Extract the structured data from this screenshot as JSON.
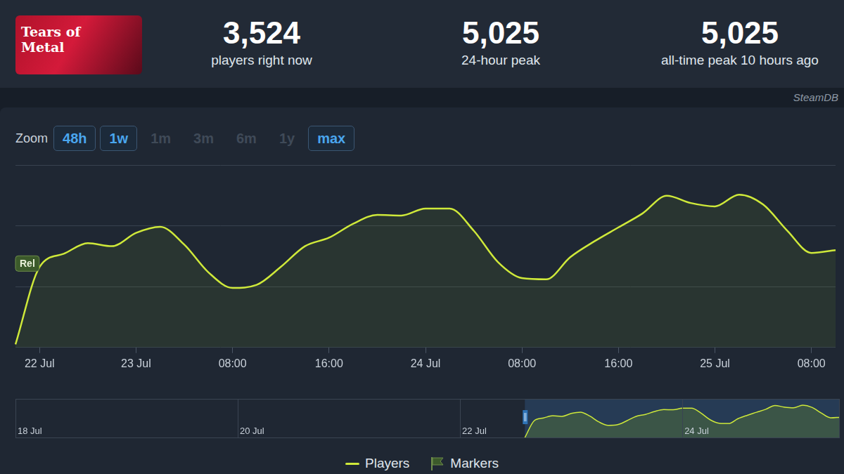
{
  "header": {
    "logo_text": "Tears of Metal",
    "stats": [
      {
        "value": "3,524",
        "label": "players right now"
      },
      {
        "value": "5,025",
        "label": "24-hour peak"
      },
      {
        "value": "5,025",
        "label": "all-time peak 10 hours ago"
      }
    ],
    "source": "SteamDB"
  },
  "zoom": {
    "label": "Zoom",
    "buttons": [
      {
        "text": "48h",
        "active": true
      },
      {
        "text": "1w",
        "active": true
      },
      {
        "text": "1m",
        "active": false
      },
      {
        "text": "3m",
        "active": false
      },
      {
        "text": "6m",
        "active": false
      },
      {
        "text": "1y",
        "active": false
      },
      {
        "text": "max",
        "active": true
      }
    ]
  },
  "chart_data": {
    "type": "line",
    "categories": [
      null,
      "22 Jul",
      null,
      null,
      null,
      "23 Jul",
      null,
      null,
      null,
      "08:00",
      null,
      null,
      null,
      "16:00",
      null,
      null,
      null,
      "24 Jul",
      null,
      null,
      null,
      "08:00",
      null,
      null,
      null,
      "16:00",
      null,
      null,
      null,
      "25 Jul",
      null,
      null,
      null,
      "08:00",
      null
    ],
    "series": [
      {
        "name": "Players",
        "color": "#cfe93a",
        "values": [
          100,
          2650,
          3080,
          3430,
          3330,
          3770,
          3970,
          3380,
          2470,
          1960,
          2060,
          2650,
          3330,
          3610,
          4070,
          4360,
          4340,
          4570,
          4570,
          3840,
          2810,
          2280,
          2240,
          2970,
          3490,
          3950,
          4410,
          4990,
          4750,
          4640,
          5025,
          4700,
          3840,
          3110,
          3200
        ]
      }
    ],
    "ylim": [
      0,
      6000
    ],
    "yticks": [
      0,
      2000,
      4000,
      6000
    ],
    "grid": true,
    "tick_labels": "x",
    "legend": "bottom",
    "annotations": [
      "Rel"
    ]
  },
  "marker_legend": "Markers",
  "navigator": {
    "categories": [
      "18 Jul",
      null,
      null,
      null,
      null,
      null,
      null,
      null,
      null,
      null,
      null,
      null,
      null,
      null,
      null,
      null,
      null,
      null,
      null,
      null,
      null,
      null,
      null,
      null,
      "20 Jul",
      null,
      null,
      null,
      null,
      null,
      null,
      null,
      null,
      null,
      null,
      null,
      null,
      null,
      null,
      null,
      null,
      null,
      null,
      null,
      null,
      null,
      null,
      null,
      "22 Jul",
      null,
      null,
      null,
      null,
      null,
      null,
      null,
      null,
      null,
      null,
      null,
      null,
      null,
      null,
      null,
      null,
      null,
      null,
      null,
      null,
      null,
      null,
      null,
      "24 Jul",
      null,
      null,
      null,
      null,
      null,
      null,
      null,
      null,
      null,
      null,
      null,
      null,
      null,
      null,
      null,
      null,
      null
    ],
    "values": [
      null,
      null,
      null,
      null,
      null,
      null,
      null,
      null,
      null,
      null,
      null,
      null,
      null,
      null,
      null,
      null,
      null,
      null,
      null,
      null,
      null,
      null,
      null,
      null,
      null,
      null,
      null,
      null,
      null,
      null,
      null,
      null,
      null,
      null,
      null,
      null,
      null,
      null,
      null,
      null,
      null,
      null,
      null,
      null,
      null,
      null,
      null,
      null,
      null,
      null,
      null,
      null,
      null,
      null,
      null,
      100,
      2650,
      3080,
      3430,
      3330,
      3770,
      3970,
      3380,
      2470,
      1960,
      2060,
      2650,
      3330,
      3610,
      4070,
      4360,
      4340,
      4570,
      4570,
      3840,
      2810,
      2280,
      2240,
      2970,
      3490,
      3950,
      4410,
      4990,
      4750,
      4640,
      5025,
      4700,
      3840,
      3110,
      3200
    ]
  }
}
